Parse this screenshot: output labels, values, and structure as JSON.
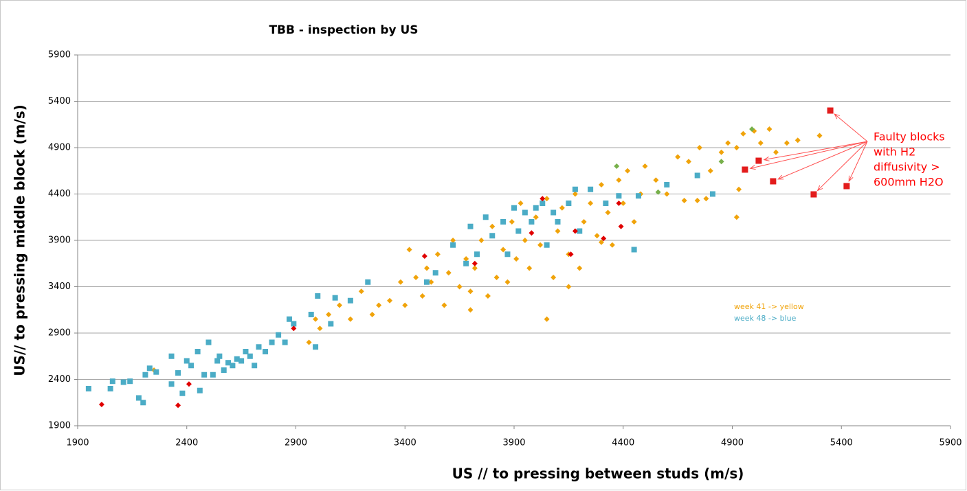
{
  "chart_data": {
    "type": "scatter",
    "title": "TBB - inspection by US",
    "xlabel": "US // to pressing between studs (m/s)",
    "ylabel": "US// to pressing  middle block (m/s)",
    "xlim": [
      1900,
      5900
    ],
    "ylim": [
      1900,
      5900
    ],
    "xticks": [
      1900,
      2400,
      2900,
      3400,
      3900,
      4400,
      4900,
      5400,
      5900
    ],
    "yticks": [
      1900,
      2400,
      2900,
      3400,
      3900,
      4400,
      4900,
      5400,
      5900
    ],
    "grid": true,
    "notes": [
      "week 41 -> yellow",
      "week 48 -> blue"
    ],
    "note_colors": [
      "#f0a30a",
      "#4bacc6"
    ],
    "annotation": [
      "Faulty blocks",
      "with H2",
      "diffusivity >",
      "600mm H2O"
    ],
    "annotation_color": "#ff0000",
    "series": [
      {
        "color": "#f0a30a",
        "marker": "diamond",
        "x": [
          2250,
          2960,
          2990,
          3010,
          3050,
          3100,
          3150,
          3200,
          3250,
          3280,
          3330,
          3380,
          3400,
          3420,
          3450,
          3480,
          3500,
          3520,
          3550,
          3580,
          3600,
          3620,
          3650,
          3680,
          3700,
          3720,
          3750,
          3780,
          3800,
          3820,
          3850,
          3870,
          3890,
          3910,
          3930,
          3950,
          3970,
          4000,
          4020,
          4050,
          4080,
          4100,
          4120,
          4150,
          4180,
          4200,
          4220,
          4250,
          4280,
          4300,
          4330,
          4350,
          4380,
          4400,
          4420,
          4450,
          4480,
          4500,
          4550,
          4600,
          4650,
          4700,
          4750,
          4780,
          4800,
          4850,
          4880,
          4920,
          4950,
          5000,
          5030,
          5070,
          5100,
          5150,
          5200,
          5300,
          4920,
          4930,
          4050,
          4150,
          4300,
          3700,
          4680,
          4740
        ],
        "values": [
          2500,
          2800,
          3050,
          2950,
          3100,
          3200,
          3050,
          3350,
          3100,
          3200,
          3250,
          3450,
          3200,
          3800,
          3500,
          3300,
          3600,
          3450,
          3750,
          3200,
          3550,
          3900,
          3400,
          3700,
          3350,
          3600,
          3900,
          3300,
          4050,
          3500,
          3800,
          3450,
          4100,
          3700,
          4300,
          3900,
          3600,
          4150,
          3850,
          4350,
          3500,
          4000,
          4250,
          3750,
          4400,
          3600,
          4100,
          4300,
          3950,
          4500,
          4200,
          3850,
          4550,
          4300,
          4650,
          4100,
          4400,
          4700,
          4550,
          4400,
          4800,
          4750,
          4900,
          4350,
          4650,
          4850,
          4950,
          4900,
          5050,
          5080,
          4950,
          5100,
          4850,
          4950,
          4980,
          5030,
          4150,
          4450,
          3050,
          3400,
          3880,
          3150,
          4330,
          4330
        ]
      },
      {
        "color": "#4bacc6",
        "marker": "square",
        "x": [
          1950,
          2050,
          2060,
          2110,
          2140,
          2180,
          2200,
          2210,
          2230,
          2260,
          2330,
          2330,
          2360,
          2380,
          2400,
          2420,
          2450,
          2460,
          2480,
          2500,
          2520,
          2540,
          2550,
          2570,
          2590,
          2610,
          2630,
          2650,
          2670,
          2690,
          2710,
          2730,
          2760,
          2790,
          2820,
          2850,
          2870,
          2890,
          2970,
          2990,
          3000,
          3060,
          3080,
          3150,
          3230,
          3500,
          3540,
          3620,
          3680,
          3700,
          3730,
          3770,
          3800,
          3850,
          3870,
          3900,
          3920,
          3950,
          3980,
          4000,
          4030,
          4050,
          4080,
          4100,
          4150,
          4180,
          4200,
          4250,
          4320,
          4380,
          4450,
          4470,
          4600,
          4740,
          4810
        ],
        "values": [
          2300,
          2300,
          2380,
          2370,
          2380,
          2200,
          2150,
          2450,
          2520,
          2480,
          2350,
          2650,
          2470,
          2250,
          2600,
          2550,
          2700,
          2280,
          2450,
          2800,
          2450,
          2600,
          2650,
          2500,
          2580,
          2550,
          2620,
          2600,
          2700,
          2650,
          2550,
          2750,
          2700,
          2800,
          2880,
          2800,
          3050,
          3000,
          3100,
          2750,
          3300,
          3000,
          3280,
          3250,
          3450,
          3450,
          3550,
          3850,
          3650,
          4050,
          3750,
          4150,
          3950,
          4100,
          3750,
          4250,
          4000,
          4200,
          4100,
          4250,
          4300,
          3850,
          4200,
          4100,
          4300,
          4450,
          4000,
          4450,
          4300,
          4380,
          3800,
          4380,
          4500,
          4600,
          4400
        ]
      },
      {
        "color": "#e00000",
        "marker": "diamond",
        "x": [
          2010,
          2360,
          2410,
          2890,
          3490,
          3720,
          3980,
          4030,
          4160,
          4180,
          4310,
          4380,
          4390
        ],
        "values": [
          2130,
          2120,
          2350,
          2950,
          3730,
          3650,
          3980,
          4350,
          3750,
          4000,
          3920,
          4300,
          4050
        ]
      },
      {
        "color": "#77b04a",
        "marker": "diamond",
        "x": [
          4370,
          4560,
          4850,
          4990
        ],
        "values": [
          4700,
          4420,
          4750,
          5100
        ]
      },
      {
        "color": "#e31c1c",
        "marker": "bigsquare",
        "x": [
          5349,
          5021,
          4958,
          5087,
          5273,
          5424
        ],
        "values": [
          5300,
          4759,
          4663,
          4537,
          4396,
          4485
        ]
      }
    ]
  }
}
